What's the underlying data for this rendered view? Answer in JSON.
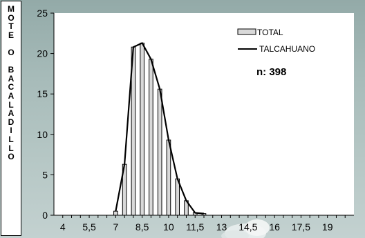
{
  "side_label": [
    "M",
    "O",
    "T",
    "E",
    "",
    "O",
    "",
    "B",
    "A",
    "C",
    "A",
    "L",
    "A",
    "D",
    "I",
    "L",
    "L",
    "O"
  ],
  "chart_data": {
    "type": "bar",
    "x_tick_labels": [
      "4",
      "5,5",
      "7",
      "8,5",
      "10",
      "11,5",
      "13",
      "14,5",
      "16",
      "17,5",
      "19"
    ],
    "x_tick_values": [
      4,
      5.5,
      7,
      8.5,
      10,
      11.5,
      13,
      14.5,
      16,
      17.5,
      19
    ],
    "xlim": [
      3.5,
      20.5
    ],
    "ylim": [
      0,
      25
    ],
    "y_ticks": [
      0,
      5,
      10,
      15,
      20,
      25
    ],
    "bar_width": 0.5,
    "series": [
      {
        "name": "TOTAL",
        "type": "bar",
        "x": [
          7,
          7.5,
          8,
          8.5,
          9,
          9.5,
          10,
          10.5,
          11,
          11.5,
          12
        ],
        "values": [
          0.5,
          6.3,
          20.8,
          21.3,
          19.3,
          15.6,
          9.3,
          4.5,
          1.8,
          0.3,
          0.2
        ]
      },
      {
        "name": "TALCAHUANO",
        "type": "line",
        "x": [
          7,
          7.5,
          8,
          8.5,
          9,
          9.5,
          10,
          10.5,
          11,
          11.5,
          12
        ],
        "values": [
          0.5,
          6.3,
          20.8,
          21.3,
          19.3,
          15.6,
          9.3,
          4.5,
          1.8,
          0.3,
          0.2
        ]
      }
    ],
    "annotation": "n: 398",
    "legend": [
      "TOTAL",
      "TALCAHUANO"
    ],
    "legend_placement": "top-right",
    "colors": {
      "bar_fill": "#d9d9d9",
      "bar_edge": "#000000",
      "line": "#000000",
      "plot_bg": "#ffffff"
    }
  }
}
